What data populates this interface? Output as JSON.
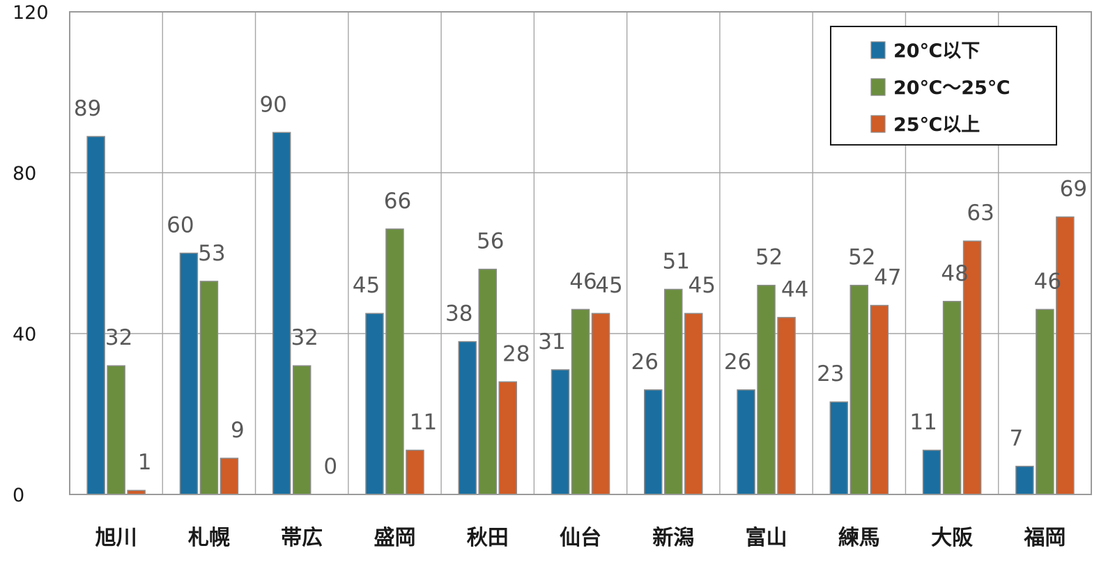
{
  "chart_data": {
    "type": "bar",
    "categories": [
      "旭川",
      "札幌",
      "帯広",
      "盛岡",
      "秋田",
      "仙台",
      "新潟",
      "富山",
      "練馬",
      "大阪",
      "福岡"
    ],
    "series": [
      {
        "name": "20℃以下",
        "color": "#1a6fa0",
        "values": [
          89,
          60,
          90,
          45,
          38,
          31,
          26,
          26,
          23,
          11,
          7
        ]
      },
      {
        "name": "20℃～25℃",
        "color": "#6b8e3e",
        "values": [
          32,
          53,
          32,
          66,
          56,
          46,
          51,
          52,
          52,
          48,
          46
        ]
      },
      {
        "name": "25℃以上",
        "color": "#d05c27",
        "values": [
          1,
          9,
          0,
          11,
          28,
          45,
          45,
          44,
          47,
          63,
          69
        ]
      }
    ],
    "ylim": [
      0,
      120
    ],
    "yticks": [
      0,
      40,
      80,
      120
    ],
    "grid": true,
    "legend_position": "top-right",
    "xlabel": "",
    "ylabel": "",
    "title": ""
  }
}
